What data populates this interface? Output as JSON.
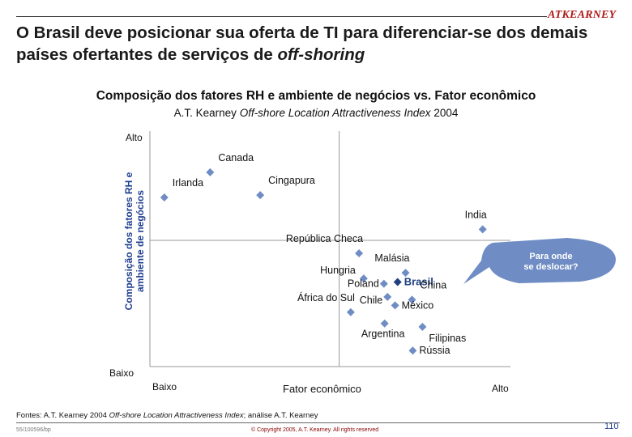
{
  "header": {
    "logo": "ATKEARNEY",
    "title_part1": "O Brasil deve posicionar sua oferta de TI para diferenciar-se dos demais países ofertantes de serviços de ",
    "title_em": "off-shoring"
  },
  "chart_data": {
    "type": "scatter",
    "title": "Composição dos fatores RH e ambiente de negócios vs. Fator econômico",
    "subtitle_prefix": "A.T. Kearney ",
    "subtitle_italic": "Off-shore Location Attractiveness Index",
    "subtitle_suffix": " 2004",
    "xlabel": "Fator econômico",
    "ylabel_line1": "Composição dos fatores RH e",
    "ylabel_line2": "ambiente de negócios",
    "x_low": "Baixo",
    "x_high": "Alto",
    "y_low": "Baixo",
    "y_high": "Alto",
    "xlim": [
      0,
      10
    ],
    "ylim": [
      0,
      10
    ],
    "divider": {
      "x": 5.25,
      "y": 5.36
    },
    "grid": false,
    "points": [
      {
        "label": "Canada",
        "x": 1.67,
        "y": 8.25,
        "label_pos": "above-right"
      },
      {
        "label": "Irlanda",
        "x": 0.4,
        "y": 7.18,
        "label_pos": "above-right"
      },
      {
        "label": "Cingapura",
        "x": 3.06,
        "y": 7.28,
        "label_pos": "above-right"
      },
      {
        "label": "India",
        "x": 9.23,
        "y": 5.83,
        "label_pos": "above-left"
      },
      {
        "label": "República Checa",
        "x": 5.8,
        "y": 4.81,
        "label_pos": "above-left"
      },
      {
        "label": "Malásia",
        "x": 7.09,
        "y": 3.98,
        "label_pos": "above-left"
      },
      {
        "label": "Hungria",
        "x": 5.93,
        "y": 3.74,
        "label_pos": "left-up"
      },
      {
        "label": "Brasil",
        "x": 6.87,
        "y": 3.59,
        "label_pos": "right",
        "highlight": true
      },
      {
        "label": "Poland",
        "x": 6.49,
        "y": 3.52,
        "label_pos": "left"
      },
      {
        "label": "Chile",
        "x": 6.59,
        "y": 2.96,
        "label_pos": "left-down"
      },
      {
        "label": "China",
        "x": 7.27,
        "y": 2.84,
        "label_pos": "above-right"
      },
      {
        "label": "México",
        "x": 6.8,
        "y": 2.6,
        "label_pos": "right"
      },
      {
        "label": "África do Sul",
        "x": 5.57,
        "y": 2.31,
        "label_pos": "above-left"
      },
      {
        "label": "Argentina",
        "x": 6.51,
        "y": 1.83,
        "label_pos": "below"
      },
      {
        "label": "Filipinas",
        "x": 7.56,
        "y": 1.69,
        "label_pos": "below-right"
      },
      {
        "label": "Rússia",
        "x": 7.29,
        "y": 0.68,
        "label_pos": "right"
      }
    ],
    "callout": {
      "text_line1": "Para onde",
      "text_line2": "se deslocar?"
    }
  },
  "colors": {
    "point": "#6f8dc4",
    "highlight": "#1f3f7f",
    "callout": "#6f8dc4",
    "logo": "#b01a1a"
  },
  "footer": {
    "source_prefix": "Fontes:  A.T. Kearney 2004 ",
    "source_italic": "Off-shore Location Attractiveness Index",
    "source_suffix": "; análise A.T. Kearney",
    "doc_id": "55/100596/bp",
    "copyright": "© Copyright 2005, A.T. Kearney. All rights reserved",
    "page": "110"
  }
}
